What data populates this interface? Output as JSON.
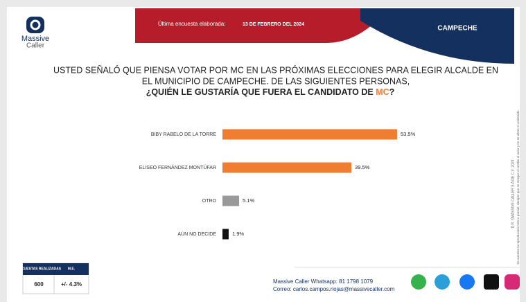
{
  "header": {
    "brand": [
      "Massive",
      "Caller"
    ],
    "survey_label": "Última encuesta elaborada:",
    "survey_date": "13 DE FEBRERO DEL 2024",
    "region": "CAMPECHE"
  },
  "question": {
    "lines": [
      "USTED SEÑALÓ QUE PIENSA VOTAR POR MC EN LAS PRÓXIMAS ELECCIONES PARA ELEGIR ALCALDE EN",
      "EL MUNICIPIO DE CAMPECHE. DE LAS SIGUIENTES PERSONAS,"
    ],
    "bold": "¿QUIÉN LE GUSTARÍA QUE FUERA EL CANDIDATO DE ",
    "highlight": "MC",
    "end": "?"
  },
  "chart_data": {
    "type": "bar",
    "orientation": "horizontal",
    "categories": [
      "BIBY RABELO DE LA TORRE",
      "ELISEO FERNÁNDEZ MONTÚFAR",
      "OTRO",
      "AÚN NO DECIDE"
    ],
    "values": [
      53.5,
      39.5,
      5.1,
      1.9
    ],
    "value_labels": [
      "53.5%",
      "39.5%",
      "5.1%",
      "1.9%"
    ],
    "colors": [
      "#ef7d32",
      "#ef7d32",
      "#999999",
      "#111111"
    ]
  },
  "stats": {
    "headers": [
      "ENCUESTAS REALIZADAS",
      "M.E."
    ],
    "values": [
      "600",
      "+/- 4.3%"
    ]
  },
  "contact": {
    "whatsapp": "Massive Caller Whatsapp: 81 1798 1079",
    "email": "Correo: carlos.campos.riojas@massivecaller.com"
  },
  "side_notes": [
    "D.R. ©MASSIVE CALLER S.A DE C.V. 2024",
    "Se autoriza la reproducción total o parcial, siempre que se otorgue el crédito al autor y no se altere el contenido."
  ]
}
